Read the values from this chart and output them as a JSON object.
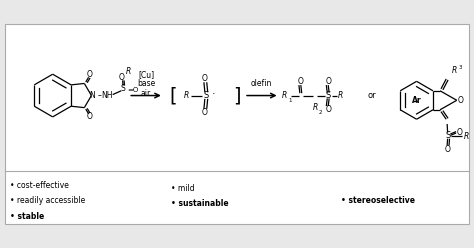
{
  "bg_color": "#ffffff",
  "box_color": "#aaaaaa",
  "fig_bg": "#e8e8e8",
  "line_color": "#000000",
  "bullet_left": [
    "• cost-effective",
    "• readily accessible",
    "• stable"
  ],
  "bullet_mid": [
    "• mild",
    "• sustainable"
  ],
  "bullet_right": [
    "• stereoselective"
  ],
  "conditions": [
    "[Cu]",
    "base",
    "air"
  ],
  "olefin_label": "olefin",
  "or_label": "or"
}
